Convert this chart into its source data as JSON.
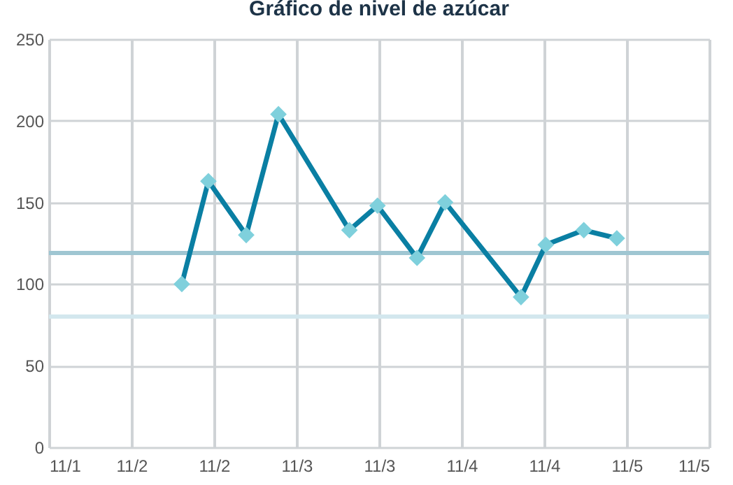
{
  "chart_data": {
    "type": "line",
    "title": "Gráfico de nivel de azúcar",
    "x": [
      "--11-02T07:19",
      "--11-02T11:11",
      "--11-02T16:41",
      "--11-02T21:22",
      "--11-03T07:41",
      "--11-03T11:46",
      "--11-03T17:31",
      "--11-03T21:36",
      "--11-04T08:38",
      "--11-04T12:14",
      "--11-04T17:46",
      "--11-04T22:34"
    ],
    "series": [
      {
        "color": "#0a7fa3",
        "values": [
          100,
          163,
          130,
          204,
          133,
          148,
          116,
          150,
          92,
          124,
          133,
          128
        ]
      }
    ],
    "marker": "diamond",
    "xlim": [
      "--11-01T12:00",
      "--11-05T12:00"
    ],
    "xticks": [
      {
        "value": "--11-01T12:00",
        "label": "11/1"
      },
      {
        "value": "--11-02T00:00",
        "label": "11/2"
      },
      {
        "value": "--11-02T12:00",
        "label": "11/2"
      },
      {
        "value": "--11-03T00:00",
        "label": "11/3"
      },
      {
        "value": "--11-03T12:00",
        "label": "11/3"
      },
      {
        "value": "--11-04T00:00",
        "label": "11/4"
      },
      {
        "value": "--11-04T12:00",
        "label": "11/4"
      },
      {
        "value": "--11-05T00:00",
        "label": "11/5"
      },
      {
        "value": "--11-05T12:00",
        "label": "11/5"
      }
    ],
    "ylim": [
      0,
      250
    ],
    "yticks": [
      0,
      50,
      100,
      150,
      200,
      250
    ],
    "ref_lines": [
      {
        "axis": "y",
        "value": 119,
        "color": "#9fc6d2"
      },
      {
        "axis": "y",
        "value": 80,
        "color": "#d3e7ee"
      }
    ],
    "grid": true
  }
}
